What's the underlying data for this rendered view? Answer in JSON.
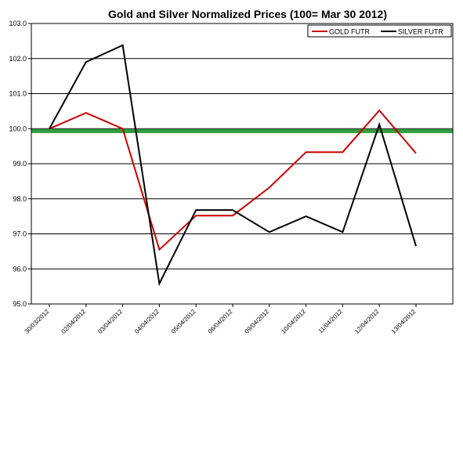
{
  "chart_data": {
    "type": "line",
    "title": "Gold and Silver Normalized Prices  (100= Mar 30 2012)",
    "xlabel": "",
    "ylabel": "",
    "categories": [
      "30/03/2012",
      "02/04/2012",
      "03/04/2012",
      "04/04/2012",
      "05/04/2012",
      "06/04/2012",
      "09/04/2012",
      "10/04/2012",
      "11/04/2012",
      "12/04/2012",
      "13/04/2012"
    ],
    "series": [
      {
        "name": "GOLD  FUTR",
        "color": "#cc0000",
        "values": [
          100.0,
          100.45,
          100.0,
          96.55,
          97.52,
          97.52,
          98.32,
          99.33,
          99.33,
          100.52,
          99.3
        ]
      },
      {
        "name": "SILVER  FUTR",
        "color": "#000000",
        "values": [
          100.0,
          101.9,
          102.38,
          95.58,
          97.68,
          97.68,
          97.05,
          97.5,
          97.05,
          100.12,
          96.65
        ]
      }
    ],
    "reference_line": {
      "value": 99.93,
      "color": "#2e9e3e"
    },
    "ylim": [
      95.0,
      103.0
    ],
    "yticks": [
      "95.0",
      "96.0",
      "97.0",
      "98.0",
      "99.0",
      "100.0",
      "101.0",
      "102.0",
      "103.0"
    ],
    "legend_position": "top-right",
    "grid": "horizontal"
  }
}
